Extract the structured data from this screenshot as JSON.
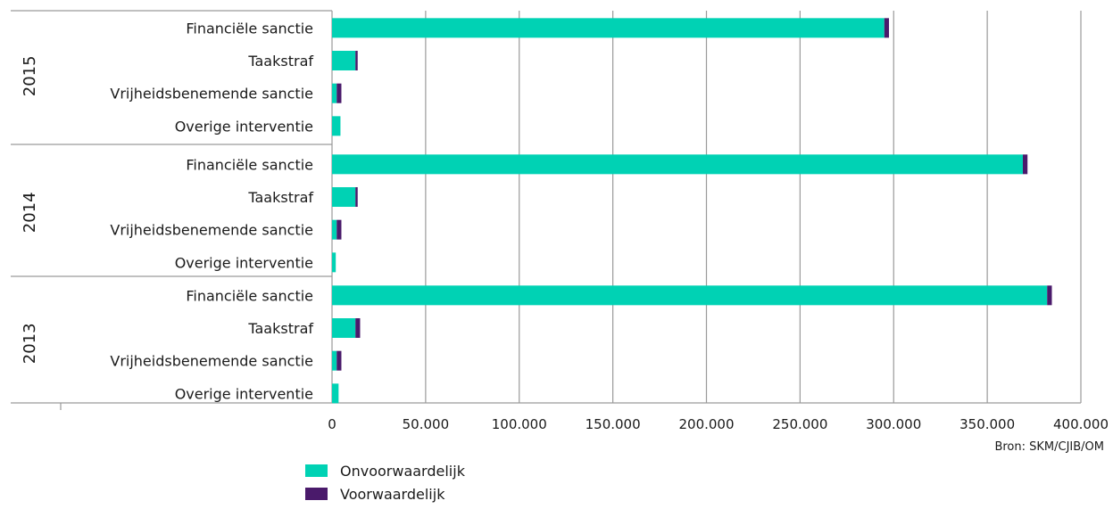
{
  "chart_data": {
    "type": "bar",
    "orientation": "horizontal",
    "stacked": true,
    "groups": [
      {
        "label": "2015",
        "categories": [
          "Financiële sanctie",
          "Taakstraf",
          "Vrijheidsbenemende sanctie",
          "Overige interventie"
        ]
      },
      {
        "label": "2014",
        "categories": [
          "Financiële sanctie",
          "Taakstraf",
          "Vrijheidsbenemende sanctie",
          "Overige interventie"
        ]
      },
      {
        "label": "2013",
        "categories": [
          "Financiële sanctie",
          "Taakstraf",
          "Vrijheidsbenemende sanctie",
          "Overige interventie"
        ]
      }
    ],
    "series": [
      {
        "name": "Onvoorwaardelijk",
        "color": "#00d2b4",
        "values": [
          [
            295000,
            12500,
            2500,
            4500
          ],
          [
            369000,
            12500,
            2500,
            2000
          ],
          [
            382000,
            12500,
            2500,
            3500
          ]
        ]
      },
      {
        "name": "Voorwaardelijk",
        "color": "#4a1a6b",
        "values": [
          [
            2500,
            1200,
            2500,
            0
          ],
          [
            2500,
            1200,
            2500,
            0
          ],
          [
            2500,
            2500,
            2500,
            0
          ]
        ]
      }
    ],
    "xlim": [
      0,
      400000
    ],
    "xticks": [
      0,
      50000,
      100000,
      150000,
      200000,
      250000,
      300000,
      350000,
      400000
    ],
    "xtick_labels": [
      "0",
      "50.000",
      "100.000",
      "150.000",
      "200.000",
      "250.000",
      "300.000",
      "350.000",
      "400.000"
    ],
    "grid": true,
    "legend_position": "bottom-left",
    "source_text": "Bron: SKM/CJIB/OM"
  },
  "legend": [
    "Onvoorwaardelijk",
    "Voorwaardelijk"
  ]
}
